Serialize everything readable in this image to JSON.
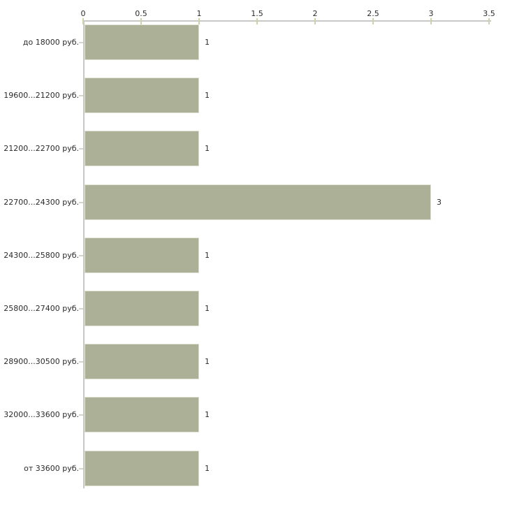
{
  "chart_data": {
    "type": "bar",
    "orientation": "horizontal",
    "title": "",
    "xlabel": "",
    "ylabel": "",
    "legend": "none",
    "grid": false,
    "categories": [
      "до 18000 руб.",
      "19600...21200 руб.",
      "21200...22700 руб.",
      "22700...24300 руб.",
      "24300...25800 руб.",
      "25800...27400 руб.",
      "28900...30500 руб.",
      "32000...33600 руб.",
      "от 33600 руб."
    ],
    "values": [
      1,
      1,
      1,
      3,
      1,
      1,
      1,
      1,
      1
    ],
    "value_labels": [
      "1",
      "1",
      "1",
      "3",
      "1",
      "1",
      "1",
      "1",
      "1"
    ],
    "x_axis": {
      "position": "top",
      "range": [
        0,
        3.5
      ],
      "ticks": [
        0,
        0.5,
        1,
        1.5,
        2,
        2.5,
        3,
        3.5
      ],
      "tick_labels": [
        "0",
        "0.5",
        "1",
        "1.5",
        "2",
        "2.5",
        "3",
        "3.5"
      ]
    }
  },
  "colors": {
    "background": "#ffffff",
    "bar_fill": "#abb096",
    "bar_border": "#e0e2d4",
    "axis_line": "#c8c8c6",
    "x_tick_color": "#cfd2a8",
    "y_tick_color": "#d8d3cd",
    "text": "#2b2b2b"
  }
}
